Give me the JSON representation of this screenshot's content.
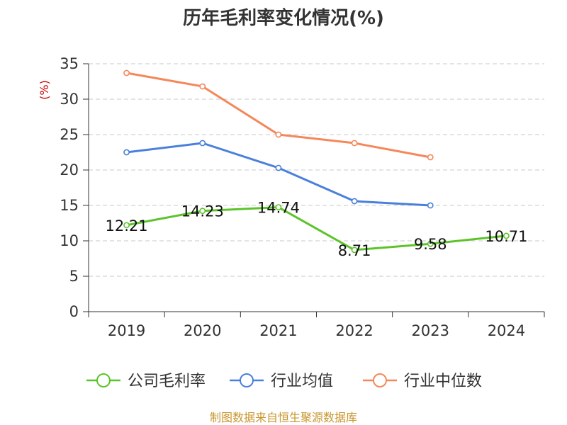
{
  "title": "历年毛利率变化情况(%)",
  "source_text": "制图数据来自恒生聚源数据库",
  "colors": {
    "source": "#c8962e",
    "unit": "#cc0000",
    "axis": "#333333",
    "grid": "#c8c8c8"
  },
  "chart_data": {
    "type": "line",
    "title": "历年毛利率变化情况(%)",
    "ylabel": "(%)",
    "xlabel": "",
    "ylim": [
      0,
      35
    ],
    "yticks": [
      0,
      5,
      10,
      15,
      20,
      25,
      30,
      35
    ],
    "grid": true,
    "legend_position": "bottom",
    "categories": [
      "2019",
      "2020",
      "2021",
      "2022",
      "2023",
      "2024"
    ],
    "series": [
      {
        "name": "公司毛利率",
        "color": "#5cc42a",
        "values": [
          12.21,
          14.23,
          14.74,
          8.71,
          9.58,
          10.71
        ],
        "labels": [
          "12.21",
          "14.23",
          "14.74",
          "8.71",
          "9.58",
          "10.71"
        ]
      },
      {
        "name": "行业均值",
        "color": "#4a80dc",
        "values": [
          22.5,
          23.8,
          20.3,
          15.6,
          15.0,
          null
        ]
      },
      {
        "name": "行业中位数",
        "color": "#f5885a",
        "values": [
          33.7,
          31.8,
          25.0,
          23.8,
          21.8,
          null
        ]
      }
    ]
  }
}
